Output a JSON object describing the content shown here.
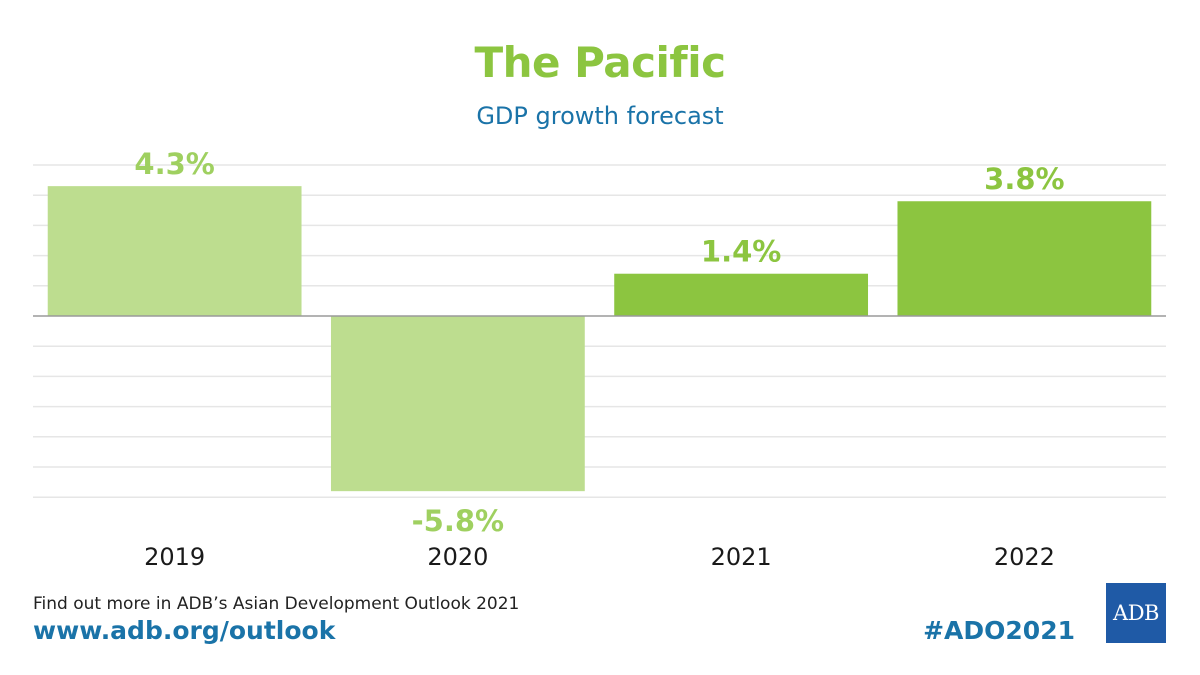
{
  "header": {
    "title": "The Pacific",
    "subtitle": "GDP growth forecast"
  },
  "chart_data": {
    "type": "bar",
    "categories": [
      "2019",
      "2020",
      "2021",
      "2022"
    ],
    "values": [
      4.3,
      -5.8,
      1.4,
      3.8
    ],
    "data_labels": [
      "4.3%",
      "-5.8%",
      "1.4%",
      "3.8%"
    ],
    "title": "The Pacific",
    "subtitle": "GDP growth forecast",
    "xlabel": "",
    "ylabel": "",
    "ylim": [
      -6,
      5
    ],
    "grid": true,
    "legend": "none"
  },
  "footer": {
    "text": "Find out more in ADB’s Asian Development Outlook 2021",
    "url": "www.adb.org/outlook",
    "hashtag": "#ADO2021",
    "logo": "ADB"
  },
  "colors": {
    "title": "#8cc540",
    "subtitle": "#1a73a8",
    "bar_light": "#bddd8f",
    "bar_dark": "#8cc540",
    "label_light": "#9fd060",
    "label_dark": "#8cc540",
    "grid": "#e6e6e6",
    "zero_line": "#9a9a9a",
    "url": "#1a73a8",
    "hashtag": "#1a73a8",
    "logo_bg": "#1f5aa6",
    "axis_text": "#1a1a1a"
  }
}
